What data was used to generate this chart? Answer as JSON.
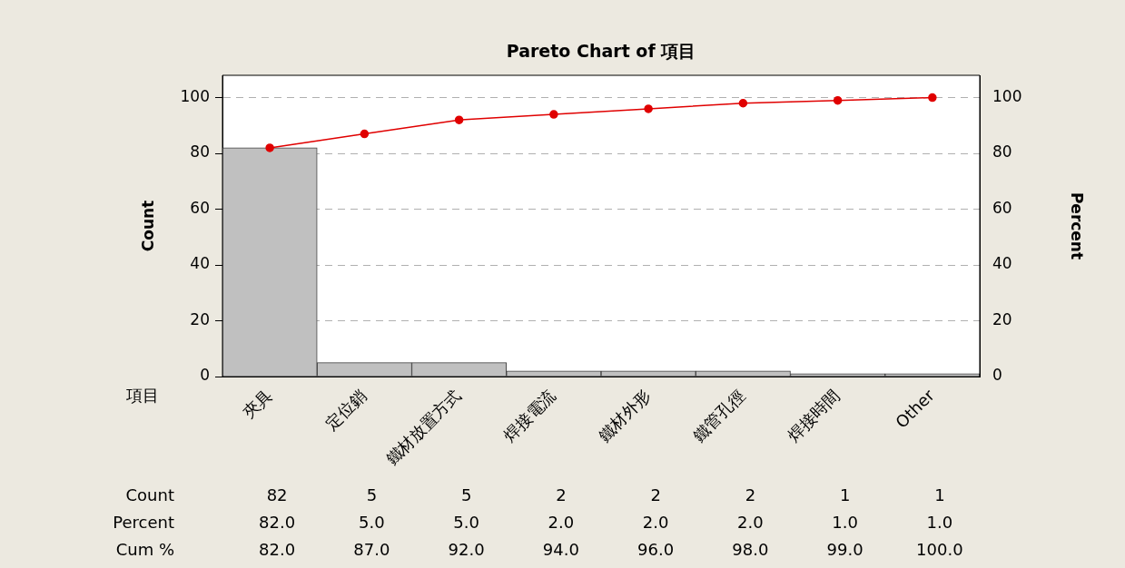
{
  "chart_data": {
    "type": "bar",
    "title": "Pareto Chart of 項目",
    "xlabel": "項目",
    "ylabel": "Count",
    "y2label": "Percent",
    "categories": [
      "夾具",
      "定位銷",
      "鐵材放置方式",
      "焊接電流",
      "鐵材外形",
      "鐵管孔徑",
      "焊接時間",
      "Other"
    ],
    "series": [
      {
        "color": "#c0c0c0",
        "values": [
          82,
          5,
          5,
          2,
          2,
          2,
          1,
          1
        ],
        "value_labels": [
          "82",
          "5",
          "5",
          "2",
          "2",
          "2",
          "1",
          "1"
        ]
      },
      {
        "type": "line",
        "axis": "y2",
        "color": "#e00000",
        "values": [
          82.0,
          87.0,
          92.0,
          94.0,
          96.0,
          98.0,
          99.0,
          100.0
        ],
        "value_labels": [
          "82.0",
          "87.0",
          "92.0",
          "94.0",
          "96.0",
          "98.0",
          "99.0",
          "100.0"
        ]
      }
    ],
    "annotations": [
      "Count",
      "Percent",
      "Cum %",
      "82.0",
      "5.0",
      "5.0",
      "2.0",
      "2.0",
      "2.0",
      "1.0",
      "1.0"
    ],
    "ylim": [
      0,
      108
    ],
    "yticks": [
      0,
      20,
      40,
      60,
      80,
      100
    ],
    "y2lim": [
      0,
      108
    ],
    "y2ticks": [
      0,
      20,
      40,
      60,
      80,
      100
    ],
    "grid": "y",
    "legend": false,
    "marker": "circle",
    "line_style": "solid"
  }
}
